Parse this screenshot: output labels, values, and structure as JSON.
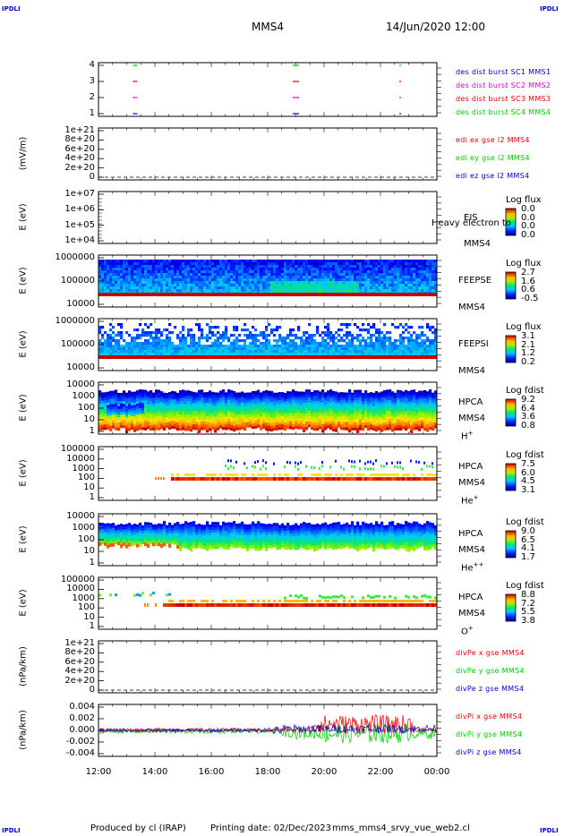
{
  "header": {
    "corner_tl": "IPDLI",
    "corner_tr": "IPDLI",
    "corner_bl": "IPDLI",
    "corner_br": "IPDLI",
    "spacecraft": "MMS4",
    "datetime": "14/Jun/2020 12:00"
  },
  "footer": {
    "produced_by": "Produced by cl (IRAP)",
    "printing_date": "Printing date: 02/Dec/2023",
    "script_name": "mms_mms4_srvy_vue_web2.cl"
  },
  "chart_data": {
    "type": "multi-panel spectrogram and line plot",
    "x_ticks": [
      "12:00",
      "14:00",
      "16:00",
      "18:00",
      "20:00",
      "22:00",
      "00:00"
    ],
    "panels": [
      {
        "id": "burst",
        "type": "scatter",
        "ylabel": "",
        "yticks": [
          "4",
          "3",
          "2",
          "1"
        ],
        "legend": [
          {
            "label": "des dist burst SC1 MMS1",
            "color": "#0000c8"
          },
          {
            "label": "des dist burst SC2 MMS2",
            "color": "#d400d4"
          },
          {
            "label": "des dist burst SC3 MMS3",
            "color": "#e00000"
          },
          {
            "label": "des dist burst SC4 MMS4",
            "color": "#00c800"
          }
        ],
        "series": [
          {
            "name": "SC4",
            "y": 4,
            "color": "#00c800",
            "x_hours": [
              13.3,
              19.0,
              22.7
            ]
          },
          {
            "name": "SC3",
            "y": 3,
            "color": "#e00000",
            "x_hours": [
              13.3,
              19.0,
              22.7
            ]
          },
          {
            "name": "SC2",
            "y": 2,
            "color": "#d400d4",
            "x_hours": [
              13.3,
              19.0,
              22.7
            ]
          },
          {
            "name": "SC1",
            "y": 1,
            "color": "#0000c8",
            "x_hours": [
              13.3,
              19.0,
              22.7
            ]
          }
        ]
      },
      {
        "id": "edi",
        "type": "line",
        "ylabel": "(mV/m)",
        "yticks": [
          "1e+21",
          "8e+20",
          "6e+20",
          "4e+20",
          "2e+20",
          "0"
        ],
        "legend": [
          {
            "label": "edi ex gse l2 MMS4",
            "color": "#e00000"
          },
          {
            "label": "edi ey gse l2 MMS4",
            "color": "#00c800"
          },
          {
            "label": "edi ez gse l2 MMS4",
            "color": "#0000c8"
          }
        ]
      },
      {
        "id": "eis",
        "type": "heatmap",
        "ylabel": "E (eV)",
        "yticks": [
          "1e+07",
          "1e+06",
          "1e+05",
          "1e+04"
        ],
        "side_labels": [
          "EIS",
          "MMS4"
        ],
        "overlay_text": "Heavy electron to",
        "colorbar": {
          "title": "Log flux",
          "values": [
            "0.0",
            "0.0",
            "0.0",
            "0.0"
          ]
        }
      },
      {
        "id": "feepse",
        "type": "heatmap",
        "ylabel": "E (eV)",
        "yticks": [
          "1000000",
          "100000",
          "10000"
        ],
        "side_labels": [
          "FEEPSE",
          "MMS4"
        ],
        "colorbar": {
          "title": "Log flux",
          "values": [
            "2.7",
            "1.6",
            "0.6",
            "-0.5"
          ]
        }
      },
      {
        "id": "feepsi",
        "type": "heatmap",
        "ylabel": "E (eV)",
        "yticks": [
          "1000000",
          "100000",
          "10000"
        ],
        "side_labels": [
          "FEEPSI",
          "MMS4"
        ],
        "colorbar": {
          "title": "Log flux",
          "values": [
            "3.1",
            "2.1",
            "1.2",
            "0.2"
          ]
        }
      },
      {
        "id": "hpca_h",
        "type": "heatmap",
        "ylabel": "E (eV)",
        "yticks": [
          "10000",
          "1000",
          "100",
          "10",
          "1"
        ],
        "side_labels": [
          "HPCA",
          "MMS4",
          "H"
        ],
        "species_sup": "+",
        "colorbar": {
          "title": "Log fdist",
          "values": [
            "9.2",
            "6.4",
            "3.6",
            "0.8"
          ]
        }
      },
      {
        "id": "hpca_he1",
        "type": "heatmap",
        "ylabel": "E (eV)",
        "yticks": [
          "100000",
          "10000",
          "1000",
          "100",
          "10",
          "1"
        ],
        "side_labels": [
          "HPCA",
          "MMS4",
          "He"
        ],
        "species_sup": "+",
        "colorbar": {
          "title": "Log fdist",
          "values": [
            "7.5",
            "6.0",
            "4.5",
            "3.1"
          ]
        }
      },
      {
        "id": "hpca_he2",
        "type": "heatmap",
        "ylabel": "E (eV)",
        "yticks": [
          "10000",
          "1000",
          "100",
          "10",
          "1"
        ],
        "side_labels": [
          "HPCA",
          "MMS4",
          "He"
        ],
        "species_sup": "++",
        "colorbar": {
          "title": "Log fdist",
          "values": [
            "9.0",
            "6.5",
            "4.1",
            "1.7"
          ]
        }
      },
      {
        "id": "hpca_o",
        "type": "heatmap",
        "ylabel": "E (eV)",
        "yticks": [
          "100000",
          "10000",
          "1000",
          "100",
          "10",
          "1"
        ],
        "side_labels": [
          "HPCA",
          "MMS4",
          "O"
        ],
        "species_sup": "+",
        "colorbar": {
          "title": "Log fdist",
          "values": [
            "8.8",
            "7.2",
            "5.5",
            "3.8"
          ]
        }
      },
      {
        "id": "divpe",
        "type": "line",
        "ylabel": "(nPa/km)",
        "yticks": [
          "1e+21",
          "8e+20",
          "6e+20",
          "4e+20",
          "2e+20",
          "0"
        ],
        "legend": [
          {
            "label": "divPe x gse MMS4",
            "color": "#e00000"
          },
          {
            "label": "divPe y gse MMS4",
            "color": "#00c800"
          },
          {
            "label": "divPe z gse MMS4",
            "color": "#0000c8"
          }
        ]
      },
      {
        "id": "divpi",
        "type": "line",
        "ylabel": "(nPa/km)",
        "yticks": [
          "0.004",
          "0.002",
          "0.000",
          "-0.002",
          "-0.004"
        ],
        "ylim": [
          -0.005,
          0.005
        ],
        "legend": [
          {
            "label": "divPi x gse MMS4",
            "color": "#e00000"
          },
          {
            "label": "divPi y gse MMS4",
            "color": "#00c800"
          },
          {
            "label": "divPi z gse MMS4",
            "color": "#0000c8"
          }
        ]
      }
    ]
  }
}
